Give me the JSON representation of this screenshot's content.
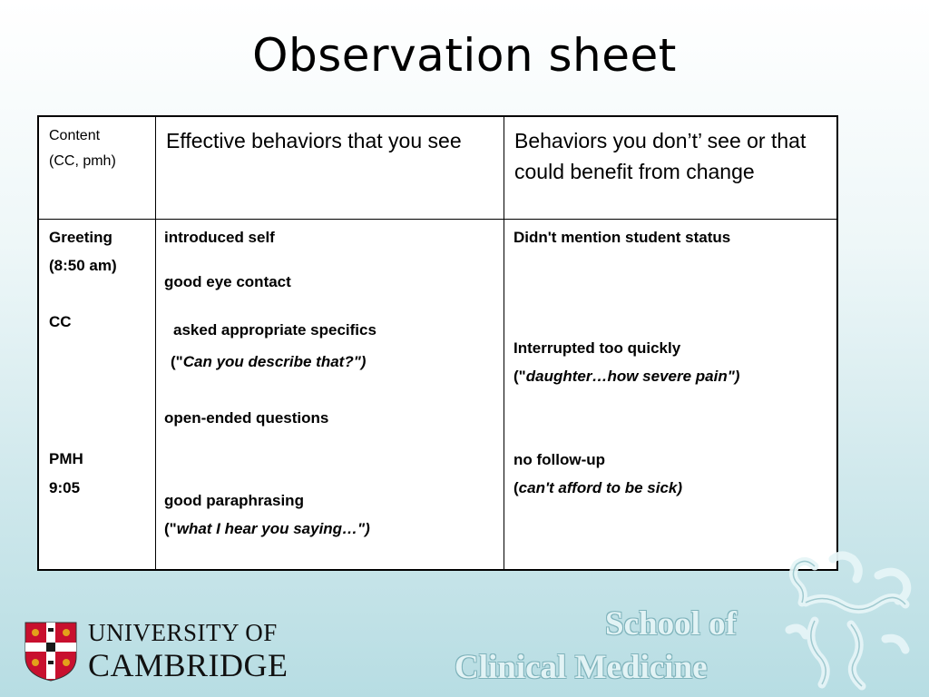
{
  "slide": {
    "title": "Observation sheet"
  },
  "table": {
    "header": {
      "content_line1": "Content",
      "content_line2": "(CC, pmh)",
      "effective": "Effective behaviors that you see",
      "change": "Behaviors you don’t’ see or that could benefit from change"
    },
    "content_col": {
      "greeting": "Greeting",
      "greeting_time": "(8:50 am)",
      "cc": "CC",
      "pmh": "PMH",
      "pmh_time": "9:05"
    },
    "effective_col": {
      "item1": "introduced self",
      "item2": "good eye contact",
      "item3": "asked appropriate specifics",
      "item3_quote_open": "(\"",
      "item3_quote": "Can you describe that?\")",
      "item4": "open-ended questions",
      "item5": "good paraphrasing",
      "item5_quote_open": "(\"",
      "item5_quote": "what I hear you saying…\")"
    },
    "change_col": {
      "item1": "Didn't mention student status",
      "item2": "Interrupted too quickly",
      "item2_quote_open": "(\"",
      "item2_quote": "daughter…how severe pain\")",
      "item3": "no follow-up",
      "item3_quote_open": "(",
      "item3_quote": "can't afford to be sick)"
    }
  },
  "footer": {
    "university_line1": "UNIVERSITY OF",
    "university_line2": "CAMBRIDGE",
    "school_line1": "School of",
    "school_line2": "Clinical Medicine"
  }
}
